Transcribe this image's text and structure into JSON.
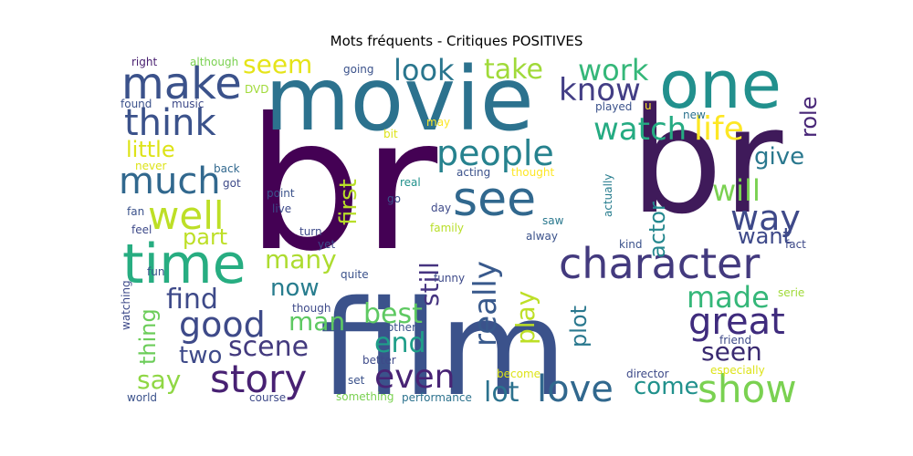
{
  "chart_data": {
    "type": "wordcloud",
    "title": "Mots fréquents - Critiques POSITIVES",
    "colormap": "viridis",
    "background": "#ffffff",
    "words": [
      {
        "text": "br",
        "color": "#440154"
      },
      {
        "text": "br",
        "color": "#3f1a5a"
      },
      {
        "text": "movie",
        "color": "#2c728e"
      },
      {
        "text": "film",
        "color": "#3b528b"
      },
      {
        "text": "one",
        "color": "#22908d"
      },
      {
        "text": "time",
        "color": "#27ad81"
      },
      {
        "text": "make",
        "color": "#3b528b"
      },
      {
        "text": "see",
        "color": "#31688e"
      },
      {
        "text": "character",
        "color": "#433a7e"
      },
      {
        "text": "story",
        "color": "#482173"
      },
      {
        "text": "good",
        "color": "#3e4a89"
      },
      {
        "text": "show",
        "color": "#7ad151"
      },
      {
        "text": "love",
        "color": "#31688e"
      },
      {
        "text": "great",
        "color": "#3f2b7d"
      },
      {
        "text": "much",
        "color": "#31688e"
      },
      {
        "text": "think",
        "color": "#3b528b"
      },
      {
        "text": "even",
        "color": "#482475"
      },
      {
        "text": "people",
        "color": "#26828e"
      },
      {
        "text": "well",
        "color": "#bddf26"
      },
      {
        "text": "really",
        "color": "#38598c"
      },
      {
        "text": "life",
        "color": "#fde725"
      },
      {
        "text": "watch",
        "color": "#25ab82"
      },
      {
        "text": "know",
        "color": "#433e85"
      },
      {
        "text": "look",
        "color": "#2a768e"
      },
      {
        "text": "way",
        "color": "#3e4989"
      },
      {
        "text": "work",
        "color": "#35b779"
      },
      {
        "text": "take",
        "color": "#a0da39"
      },
      {
        "text": "will",
        "color": "#7ad151"
      },
      {
        "text": "made",
        "color": "#35b779"
      },
      {
        "text": "scene",
        "color": "#433a7e"
      },
      {
        "text": "end",
        "color": "#1f9e89"
      },
      {
        "text": "lot",
        "color": "#2c728e"
      },
      {
        "text": "find",
        "color": "#3e4a89"
      },
      {
        "text": "best",
        "color": "#5ec962"
      },
      {
        "text": "seen",
        "color": "#3a2a70"
      },
      {
        "text": "play",
        "color": "#bddf26"
      },
      {
        "text": "seem",
        "color": "#e5e419"
      },
      {
        "text": "many",
        "color": "#addc30"
      },
      {
        "text": "say",
        "color": "#8fd744"
      },
      {
        "text": "come",
        "color": "#21918c"
      },
      {
        "text": "still",
        "color": "#463480"
      },
      {
        "text": "man",
        "color": "#5ec962"
      },
      {
        "text": "two",
        "color": "#3e4a89"
      },
      {
        "text": "now",
        "color": "#287d8e"
      },
      {
        "text": "give",
        "color": "#2a788e"
      },
      {
        "text": "little",
        "color": "#dde318"
      },
      {
        "text": "part",
        "color": "#bddf26"
      },
      {
        "text": "want",
        "color": "#3e4989"
      },
      {
        "text": "first",
        "color": "#b8de29"
      },
      {
        "text": "plot",
        "color": "#2a788e"
      },
      {
        "text": "actor",
        "color": "#24878e"
      },
      {
        "text": "thing",
        "color": "#6ccd5a"
      },
      {
        "text": "role",
        "color": "#482677"
      },
      {
        "text": "right",
        "color": "#481f70"
      },
      {
        "text": "although",
        "color": "#7ad151"
      },
      {
        "text": "DVD",
        "color": "#a0da39"
      },
      {
        "text": "music",
        "color": "#3e4a89"
      },
      {
        "text": "found",
        "color": "#3b528b"
      },
      {
        "text": "going",
        "color": "#3b528b"
      },
      {
        "text": "played",
        "color": "#3b528b"
      },
      {
        "text": "new",
        "color": "#2c728e"
      },
      {
        "text": "may",
        "color": "#fde725"
      },
      {
        "text": "bit",
        "color": "#dde318"
      },
      {
        "text": "thought",
        "color": "#fde725"
      },
      {
        "text": "acting",
        "color": "#3b528b"
      },
      {
        "text": "never",
        "color": "#dde318"
      },
      {
        "text": "back",
        "color": "#31688e"
      },
      {
        "text": "got",
        "color": "#3e4a89"
      },
      {
        "text": "point",
        "color": "#3b528b"
      },
      {
        "text": "live",
        "color": "#3e4a89"
      },
      {
        "text": "real",
        "color": "#21918c"
      },
      {
        "text": "day",
        "color": "#3e4a89"
      },
      {
        "text": "actually",
        "color": "#287d8e"
      },
      {
        "text": "fan",
        "color": "#3b528b"
      },
      {
        "text": "feel",
        "color": "#3e4a89"
      },
      {
        "text": "go",
        "color": "#3b528b"
      },
      {
        "text": "family",
        "color": "#b8de29"
      },
      {
        "text": "turn",
        "color": "#3e4a89"
      },
      {
        "text": "saw",
        "color": "#2a788e"
      },
      {
        "text": "alway",
        "color": "#3b528b"
      },
      {
        "text": "yet",
        "color": "#3e4a89"
      },
      {
        "text": "kind",
        "color": "#3b528b"
      },
      {
        "text": "fact",
        "color": "#3e4a89"
      },
      {
        "text": "fun",
        "color": "#3b528b"
      },
      {
        "text": "watching",
        "color": "#3e4a89"
      },
      {
        "text": "quite",
        "color": "#3b528b"
      },
      {
        "text": "funny",
        "color": "#3e4a89"
      },
      {
        "text": "serie",
        "color": "#a0da39"
      },
      {
        "text": "though",
        "color": "#3e4a89"
      },
      {
        "text": "another",
        "color": "#3b528b"
      },
      {
        "text": "friend",
        "color": "#3e4a89"
      },
      {
        "text": "better",
        "color": "#3e4a89"
      },
      {
        "text": "set",
        "color": "#3b528b"
      },
      {
        "text": "become",
        "color": "#dde318"
      },
      {
        "text": "director",
        "color": "#3e4a89"
      },
      {
        "text": "especially",
        "color": "#dde318"
      },
      {
        "text": "world",
        "color": "#3b528b"
      },
      {
        "text": "course",
        "color": "#3e4a89"
      },
      {
        "text": "something",
        "color": "#7ad151"
      },
      {
        "text": "performance",
        "color": "#2c728e"
      },
      {
        "text": "u",
        "color": "#fde725"
      }
    ]
  }
}
